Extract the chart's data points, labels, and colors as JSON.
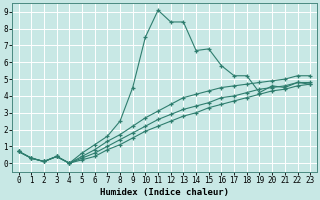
{
  "title": "",
  "xlabel": "Humidex (Indice chaleur)",
  "background_color": "#c8e8e5",
  "grid_color": "#ffffff",
  "line_color": "#2e7d6e",
  "line1_y": [
    0.7,
    0.3,
    0.1,
    0.4,
    0.0,
    0.6,
    1.1,
    1.6,
    2.5,
    4.5,
    7.5,
    9.1,
    8.4,
    8.4,
    6.7,
    6.8,
    5.8,
    5.2,
    5.2,
    4.2,
    4.6,
    4.5,
    4.8,
    4.7
  ],
  "line2_y": [
    0.7,
    0.3,
    0.1,
    0.4,
    0.0,
    0.4,
    0.8,
    1.3,
    1.7,
    2.2,
    2.7,
    3.1,
    3.5,
    3.9,
    4.1,
    4.3,
    4.5,
    4.6,
    4.7,
    4.8,
    4.9,
    5.0,
    5.2,
    5.2
  ],
  "line3_y": [
    0.7,
    0.3,
    0.1,
    0.4,
    0.0,
    0.3,
    0.6,
    1.0,
    1.4,
    1.8,
    2.2,
    2.6,
    2.9,
    3.2,
    3.4,
    3.6,
    3.9,
    4.0,
    4.2,
    4.4,
    4.5,
    4.6,
    4.8,
    4.8
  ],
  "line4_y": [
    0.7,
    0.3,
    0.1,
    0.4,
    0.0,
    0.2,
    0.4,
    0.8,
    1.1,
    1.5,
    1.9,
    2.2,
    2.5,
    2.8,
    3.0,
    3.3,
    3.5,
    3.7,
    3.9,
    4.1,
    4.3,
    4.4,
    4.6,
    4.7
  ],
  "xlim": [
    -0.5,
    23.5
  ],
  "ylim": [
    -0.5,
    9.5
  ],
  "xtick_labels": [
    "0",
    "1",
    "2",
    "3",
    "4",
    "5",
    "6",
    "7",
    "8",
    "9",
    "10",
    "11",
    "12",
    "13",
    "14",
    "15",
    "16",
    "17",
    "18",
    "19",
    "20",
    "21",
    "22",
    "23"
  ],
  "ytick_labels": [
    "0",
    "1",
    "2",
    "3",
    "4",
    "5",
    "6",
    "7",
    "8",
    "9"
  ],
  "xlabel_fontsize": 6.5,
  "tick_fontsize": 5.5
}
